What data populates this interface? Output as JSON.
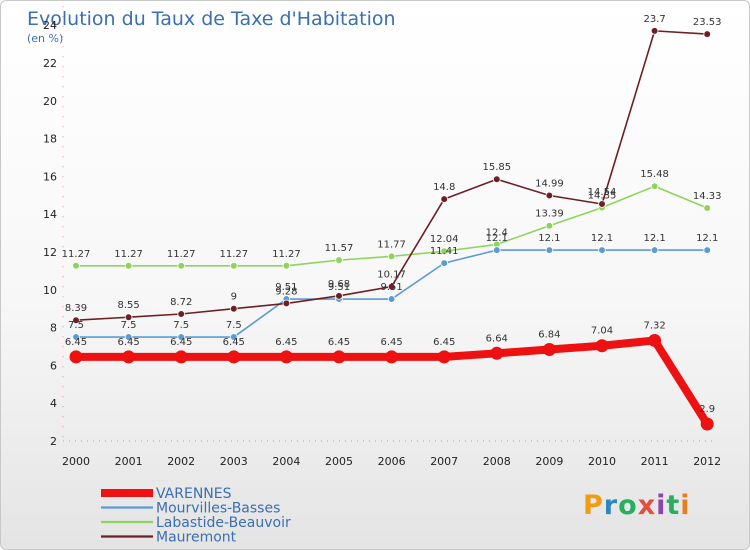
{
  "chart_data": {
    "type": "line",
    "title": "Evolution du Taux de Taxe d'Habitation",
    "subtitle": "(en %)",
    "x": [
      "2000",
      "2001",
      "2002",
      "2003",
      "2004",
      "2005",
      "2006",
      "2007",
      "2008",
      "2009",
      "2010",
      "2011",
      "2012"
    ],
    "ylim": [
      2,
      25
    ],
    "yticks": [
      2,
      4,
      6,
      8,
      10,
      12,
      14,
      16,
      18,
      20,
      22,
      24
    ],
    "grid": false,
    "legend_position": "bottom-left",
    "series": [
      {
        "name": "VARENNES",
        "color": "#ee1111",
        "values": [
          6.45,
          6.45,
          6.45,
          6.45,
          6.45,
          6.45,
          6.45,
          6.45,
          6.64,
          6.84,
          7.04,
          7.32,
          2.9
        ],
        "labels": [
          "6.45",
          "6.45",
          "6.45",
          "6.45",
          "6.45",
          "6.45",
          "6.45",
          "6.45",
          "6.64",
          "6.84",
          "7.04",
          "7.32",
          "2.9"
        ]
      },
      {
        "name": "Mourvilles-Basses",
        "color": "#5b9bd5",
        "values": [
          7.5,
          7.5,
          7.5,
          7.5,
          9.51,
          9.51,
          9.51,
          11.41,
          12.1,
          12.1,
          12.1,
          12.1,
          12.1
        ],
        "labels": [
          "7.5",
          "7.5",
          "7.5",
          "7.5",
          "9.51",
          "9.51",
          "9.51",
          "11.41",
          "12.1",
          "12.1",
          "12.1",
          "12.1",
          "12.1"
        ]
      },
      {
        "name": "Labastide-Beauvoir",
        "color": "#8fd45a",
        "values": [
          11.27,
          11.27,
          11.27,
          11.27,
          11.27,
          11.57,
          11.77,
          12.04,
          12.4,
          13.39,
          14.35,
          15.48,
          14.33
        ],
        "labels": [
          "11.27",
          "11.27",
          "11.27",
          "11.27",
          "11.27",
          "11.57",
          "11.77",
          "12.04",
          "12.4",
          "13.39",
          "14.35",
          "15.48",
          "14.33"
        ]
      },
      {
        "name": "Mauremont",
        "color": "#6e1f24",
        "values": [
          8.39,
          8.55,
          8.72,
          9,
          9.28,
          9.68,
          10.17,
          14.8,
          15.85,
          14.99,
          14.54,
          23.7,
          23.53
        ],
        "labels": [
          "8.39",
          "8.55",
          "8.72",
          "9",
          "9.28",
          "9.68",
          "10.17",
          "14.8",
          "15.85",
          "14.99",
          "14.54",
          "23.7",
          "23.53"
        ]
      }
    ]
  },
  "logo": {
    "text": "Proxiti",
    "letters": [
      "P",
      "r",
      "o",
      "x",
      "i",
      "t",
      "i"
    ],
    "colors": [
      "#f39c12",
      "#2e86c1",
      "#27ae60",
      "#e74c3c",
      "#8e44ad",
      "#27ae60",
      "#e67e22"
    ]
  }
}
